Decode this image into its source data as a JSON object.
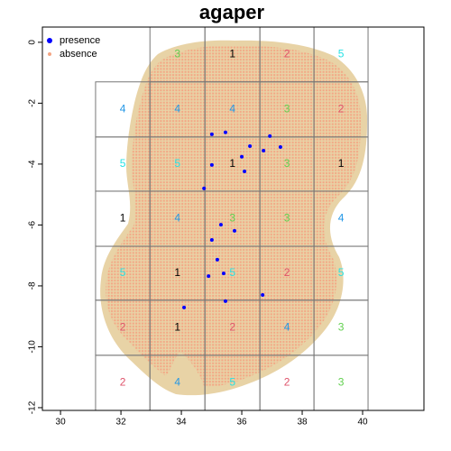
{
  "chart_data": {
    "type": "scatter",
    "title": "agaper",
    "xlim": [
      29.4,
      42.03
    ],
    "ylim": [
      -12.09,
      0.5
    ],
    "xticks": [
      30,
      32,
      34,
      36,
      38,
      40
    ],
    "yticks": [
      0,
      -2,
      -4,
      -6,
      -8,
      -10,
      -12
    ],
    "legend": "top-left",
    "series": [
      {
        "name": "presence",
        "color": "#0000ff",
        "x": [
          35.01,
          35.46,
          36.93,
          36.27,
          37.28,
          36.72,
          36.0,
          35.01,
          36.09,
          34.75,
          35.31,
          35.76,
          35.01,
          35.19,
          35.4,
          34.9,
          36.69,
          35.46,
          34.09
        ],
        "values": [
          -3.02,
          -2.96,
          -3.08,
          -3.41,
          -3.44,
          -3.56,
          -3.76,
          -4.03,
          -4.24,
          -4.8,
          -5.99,
          -6.19,
          -6.49,
          -7.14,
          -7.59,
          -7.68,
          -8.3,
          -8.5,
          -8.71
        ]
      },
      {
        "name": "absence",
        "color": "#f4a583"
      }
    ],
    "fold_colors": {
      "1": "#000000",
      "2": "#df536b",
      "3": "#61d04f",
      "4": "#2297e6",
      "5": "#28e2e5"
    },
    "blocks": [
      {
        "x": [
          32.96,
          34.78
        ],
        "y": [
          -1.3,
          0.5
        ],
        "fold": 3
      },
      {
        "x": [
          34.78,
          36.6
        ],
        "y": [
          -1.3,
          0.5
        ],
        "fold": 1
      },
      {
        "x": [
          36.6,
          38.39
        ],
        "y": [
          -1.3,
          0.5
        ],
        "fold": 2
      },
      {
        "x": [
          38.39,
          40.18
        ],
        "y": [
          -1.3,
          0.5
        ],
        "fold": 5
      },
      {
        "x": [
          31.16,
          32.96
        ],
        "y": [
          -3.11,
          -1.3
        ],
        "fold": 4
      },
      {
        "x": [
          32.96,
          34.78
        ],
        "y": [
          -3.11,
          -1.3
        ],
        "fold": 4
      },
      {
        "x": [
          34.78,
          36.6
        ],
        "y": [
          -3.11,
          -1.3
        ],
        "fold": 4
      },
      {
        "x": [
          36.6,
          38.39
        ],
        "y": [
          -3.11,
          -1.3
        ],
        "fold": 3
      },
      {
        "x": [
          38.39,
          40.18
        ],
        "y": [
          -3.11,
          -1.3
        ],
        "fold": 2
      },
      {
        "x": [
          31.16,
          32.96
        ],
        "y": [
          -4.89,
          -3.11
        ],
        "fold": 5
      },
      {
        "x": [
          32.96,
          34.78
        ],
        "y": [
          -4.89,
          -3.11
        ],
        "fold": 5
      },
      {
        "x": [
          34.78,
          36.6
        ],
        "y": [
          -4.89,
          -3.11
        ],
        "fold": 1
      },
      {
        "x": [
          36.6,
          38.39
        ],
        "y": [
          -4.89,
          -3.11
        ],
        "fold": 3
      },
      {
        "x": [
          38.39,
          40.18
        ],
        "y": [
          -4.89,
          -3.11
        ],
        "fold": 1
      },
      {
        "x": [
          31.16,
          32.96
        ],
        "y": [
          -6.7,
          -4.89
        ],
        "fold": 1
      },
      {
        "x": [
          32.96,
          34.78
        ],
        "y": [
          -6.7,
          -4.89
        ],
        "fold": 4
      },
      {
        "x": [
          34.78,
          36.6
        ],
        "y": [
          -6.7,
          -4.89
        ],
        "fold": 3
      },
      {
        "x": [
          36.6,
          38.39
        ],
        "y": [
          -6.7,
          -4.89
        ],
        "fold": 3
      },
      {
        "x": [
          38.39,
          40.18
        ],
        "y": [
          -6.7,
          -4.89
        ],
        "fold": 4
      },
      {
        "x": [
          31.16,
          32.96
        ],
        "y": [
          -8.47,
          -6.7
        ],
        "fold": 5
      },
      {
        "x": [
          32.96,
          34.78
        ],
        "y": [
          -8.47,
          -6.7
        ],
        "fold": 1
      },
      {
        "x": [
          34.78,
          36.6
        ],
        "y": [
          -8.47,
          -6.7
        ],
        "fold": 5
      },
      {
        "x": [
          36.6,
          38.39
        ],
        "y": [
          -8.47,
          -6.7
        ],
        "fold": 2
      },
      {
        "x": [
          38.39,
          40.18
        ],
        "y": [
          -8.47,
          -6.7
        ],
        "fold": 5
      },
      {
        "x": [
          31.16,
          32.96
        ],
        "y": [
          -10.28,
          -8.47
        ],
        "fold": 2
      },
      {
        "x": [
          32.96,
          34.78
        ],
        "y": [
          -10.28,
          -8.47
        ],
        "fold": 1
      },
      {
        "x": [
          34.78,
          36.6
        ],
        "y": [
          -10.28,
          -8.47
        ],
        "fold": 2
      },
      {
        "x": [
          36.6,
          38.39
        ],
        "y": [
          -10.28,
          -8.47
        ],
        "fold": 4
      },
      {
        "x": [
          38.39,
          40.18
        ],
        "y": [
          -10.28,
          -8.47
        ],
        "fold": 3
      },
      {
        "x": [
          31.16,
          32.96
        ],
        "y": [
          -12.09,
          -10.28
        ],
        "fold": 2
      },
      {
        "x": [
          32.96,
          34.78
        ],
        "y": [
          -12.09,
          -10.28
        ],
        "fold": 4
      },
      {
        "x": [
          34.78,
          36.6
        ],
        "y": [
          -12.09,
          -10.28
        ],
        "fold": 5
      },
      {
        "x": [
          36.6,
          38.39
        ],
        "y": [
          -12.09,
          -10.28
        ],
        "fold": 2
      },
      {
        "x": [
          38.39,
          40.18
        ],
        "y": [
          -12.09,
          -10.28
        ],
        "fold": 3
      }
    ]
  }
}
